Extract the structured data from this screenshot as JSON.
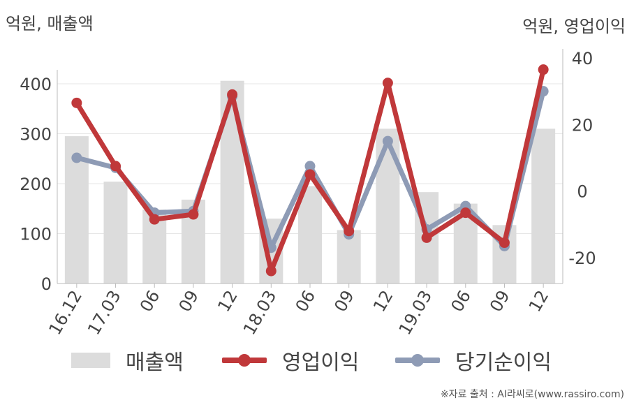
{
  "units": {
    "left": "억원, 매출액",
    "right": "억원, 영업이익"
  },
  "legend": {
    "sales": "매출액",
    "operating": "영업이익",
    "net": "당기순이익"
  },
  "source": "※자료 출처 : AI라씨로(www.rassiro.com)",
  "colors": {
    "sales": "#dcdcdc",
    "operating": "#c0383a",
    "net": "#8e9bb5",
    "grid": "#e6e6e6",
    "axis": "#bbbbbb"
  },
  "chart_data": {
    "type": "bar",
    "categories": [
      "16.12",
      "17.03",
      "06",
      "09",
      "12",
      "18.03",
      "06",
      "09",
      "12",
      "19.03",
      "06",
      "09",
      "12"
    ],
    "series": [
      {
        "name": "매출액",
        "type": "bar",
        "axis": "left",
        "values": [
          295,
          204,
          148,
          168,
          406,
          130,
          195,
          107,
          310,
          183,
          160,
          117,
          310
        ]
      },
      {
        "name": "영업이익",
        "type": "line",
        "axis": "right",
        "values": [
          26.5,
          7.5,
          -8.5,
          -7.0,
          29.0,
          -24.0,
          5.0,
          -12.0,
          32.5,
          -14.0,
          -6.5,
          -15.5,
          36.5
        ]
      },
      {
        "name": "당기순이익",
        "type": "line",
        "axis": "right",
        "values": [
          10.0,
          7.0,
          -6.5,
          -6.0,
          28.5,
          -17.0,
          7.5,
          -13.0,
          15.0,
          -11.5,
          -4.5,
          -16.5,
          30.0
        ]
      }
    ],
    "yLeft": {
      "min": 0,
      "max": 400,
      "ticks": [
        0,
        100,
        200,
        300,
        400
      ]
    },
    "yRight": {
      "min": -20,
      "max": 40,
      "ticks": [
        -20,
        0,
        20,
        40
      ]
    },
    "grid": true,
    "legend_position": "bottom"
  }
}
